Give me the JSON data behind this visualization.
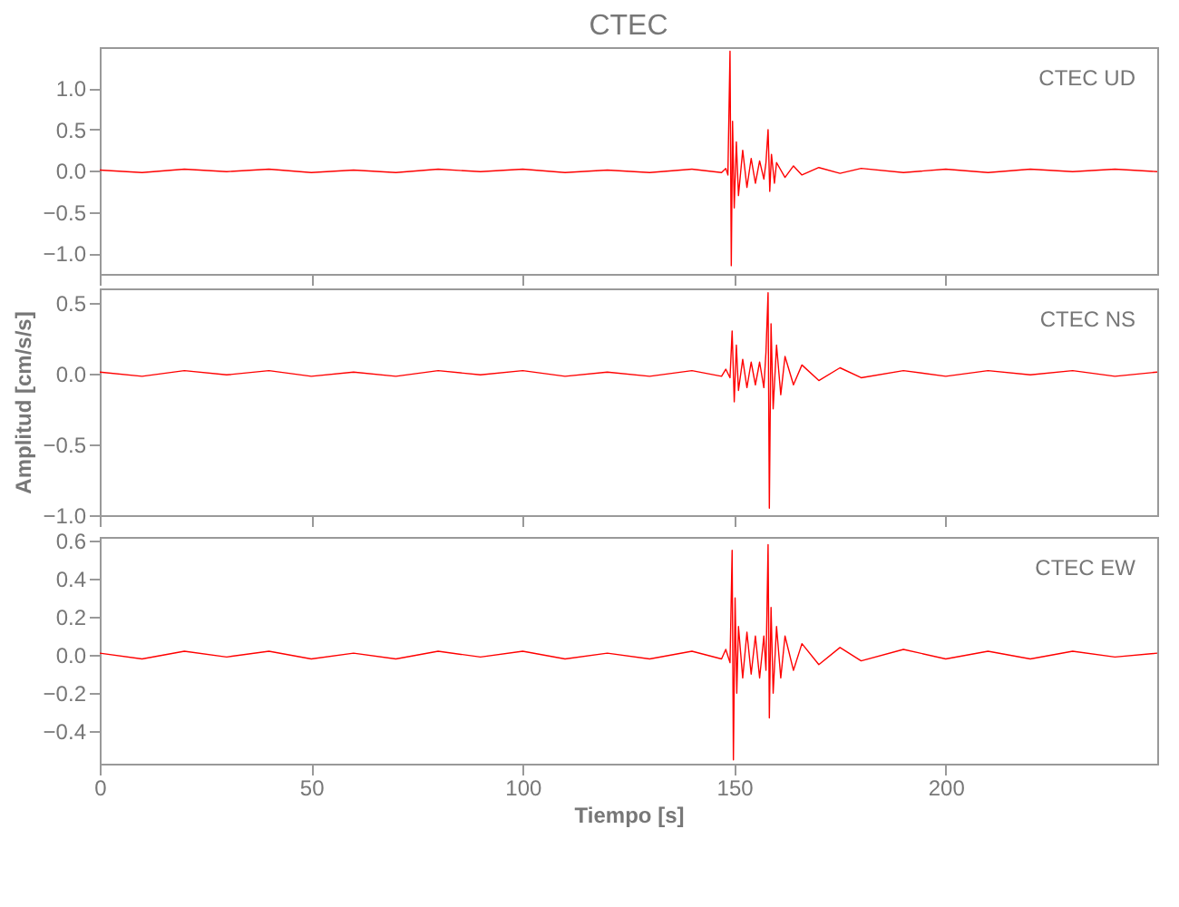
{
  "chart_data": [
    {
      "type": "line",
      "title": "CTEC",
      "annotations": [
        "CTEC UD"
      ],
      "tick_labels": "y",
      "grid": false,
      "xlim": [
        0,
        250
      ],
      "xticks": [
        0,
        50,
        100,
        150,
        200
      ],
      "ylim": [
        -1.25,
        1.5
      ],
      "yticks": [
        {
          "value": -1,
          "label": "−1.0"
        },
        -0.5,
        {
          "value": 0,
          "label": "0.0"
        },
        0.5,
        {
          "value": 1,
          "label": "1.0"
        }
      ],
      "series": [
        {
          "color": "#ff0000",
          "x": [
            0,
            10,
            20,
            30,
            40,
            50,
            60,
            70,
            80,
            90,
            100,
            110,
            120,
            130,
            140,
            147,
            148,
            148.5,
            149,
            149.3,
            149.6,
            150,
            150.5,
            151,
            152,
            153,
            154,
            155,
            156,
            157,
            157.5,
            158,
            158.4,
            158.8,
            159.5,
            160,
            162,
            164,
            166,
            170,
            175,
            180,
            190,
            200,
            210,
            220,
            230,
            240,
            250
          ],
          "values": [
            0.01,
            -0.02,
            0.02,
            -0.01,
            0.02,
            -0.02,
            0.01,
            -0.02,
            0.02,
            -0.01,
            0.02,
            -0.02,
            0.01,
            -0.02,
            0.02,
            -0.02,
            0.03,
            -0.05,
            1.45,
            -1.15,
            0.6,
            -0.45,
            0.35,
            -0.3,
            0.25,
            -0.2,
            0.15,
            -0.15,
            0.12,
            -0.1,
            0.1,
            0.5,
            -0.25,
            0.2,
            -0.15,
            0.1,
            -0.08,
            0.06,
            -0.05,
            0.04,
            -0.03,
            0.03,
            -0.02,
            0.02,
            -0.02,
            0.02,
            -0.01,
            0.02,
            -0.01
          ]
        }
      ]
    },
    {
      "type": "line",
      "ylabel": "Amplitud [cm/s/s]",
      "annotations": [
        "CTEC NS"
      ],
      "tick_labels": "y",
      "grid": false,
      "xlim": [
        0,
        250
      ],
      "xticks": [
        0,
        50,
        100,
        150,
        200
      ],
      "ylim": [
        -1.0,
        0.6
      ],
      "yticks": [
        {
          "value": -1,
          "label": "−1.0"
        },
        -0.5,
        {
          "value": 0,
          "label": "0.0"
        },
        0.5
      ],
      "series": [
        {
          "color": "#ff0000",
          "x": [
            0,
            10,
            20,
            30,
            40,
            50,
            60,
            70,
            80,
            90,
            100,
            110,
            120,
            130,
            140,
            147,
            148,
            149,
            149.5,
            150,
            150.5,
            151,
            152,
            153,
            154,
            155,
            156,
            157,
            157.5,
            158,
            158.3,
            158.7,
            159.2,
            160,
            161,
            162,
            164,
            166,
            170,
            175,
            180,
            190,
            200,
            210,
            220,
            230,
            240,
            250
          ],
          "values": [
            0.01,
            -0.02,
            0.02,
            -0.01,
            0.02,
            -0.02,
            0.01,
            -0.02,
            0.02,
            -0.01,
            0.02,
            -0.02,
            0.01,
            -0.02,
            0.02,
            -0.02,
            0.03,
            -0.03,
            0.3,
            -0.2,
            0.2,
            -0.12,
            0.1,
            -0.1,
            0.08,
            -0.08,
            0.08,
            -0.1,
            0.15,
            0.57,
            -0.95,
            0.35,
            -0.25,
            0.2,
            -0.15,
            0.12,
            -0.08,
            0.06,
            -0.05,
            0.04,
            -0.03,
            0.02,
            -0.02,
            0.02,
            -0.01,
            0.02,
            -0.02,
            0.01
          ]
        }
      ]
    },
    {
      "type": "line",
      "xlabel": "Tiempo [s]",
      "annotations": [
        "CTEC EW"
      ],
      "grid": false,
      "xlim": [
        0,
        250
      ],
      "xticks": [
        0,
        50,
        100,
        150,
        200
      ],
      "ylim": [
        -0.57,
        0.62
      ],
      "yticks": [
        -0.4,
        -0.2,
        {
          "value": 0,
          "label": "0.0"
        },
        0.2,
        0.4,
        0.6
      ],
      "series": [
        {
          "color": "#ff0000",
          "x": [
            0,
            10,
            20,
            30,
            40,
            50,
            60,
            70,
            80,
            90,
            100,
            110,
            120,
            130,
            140,
            147,
            148,
            149,
            149.5,
            149.8,
            150.2,
            150.6,
            151,
            152,
            153,
            154,
            155,
            156,
            157,
            157.5,
            158,
            158.3,
            158.7,
            159.2,
            160,
            161,
            162,
            164,
            166,
            170,
            175,
            180,
            190,
            200,
            210,
            220,
            230,
            240,
            250
          ],
          "values": [
            0.01,
            -0.02,
            0.02,
            -0.01,
            0.02,
            -0.02,
            0.01,
            -0.02,
            0.02,
            -0.01,
            0.02,
            -0.02,
            0.01,
            -0.02,
            0.02,
            -0.02,
            0.03,
            -0.04,
            0.55,
            -0.55,
            0.3,
            -0.2,
            0.15,
            -0.12,
            0.12,
            -0.1,
            0.1,
            -0.12,
            0.1,
            -0.08,
            0.58,
            -0.33,
            0.25,
            -0.2,
            0.15,
            -0.12,
            0.1,
            -0.08,
            0.06,
            -0.05,
            0.04,
            -0.03,
            0.03,
            -0.02,
            0.02,
            -0.02,
            0.02,
            -0.01,
            0.01
          ]
        }
      ]
    }
  ]
}
